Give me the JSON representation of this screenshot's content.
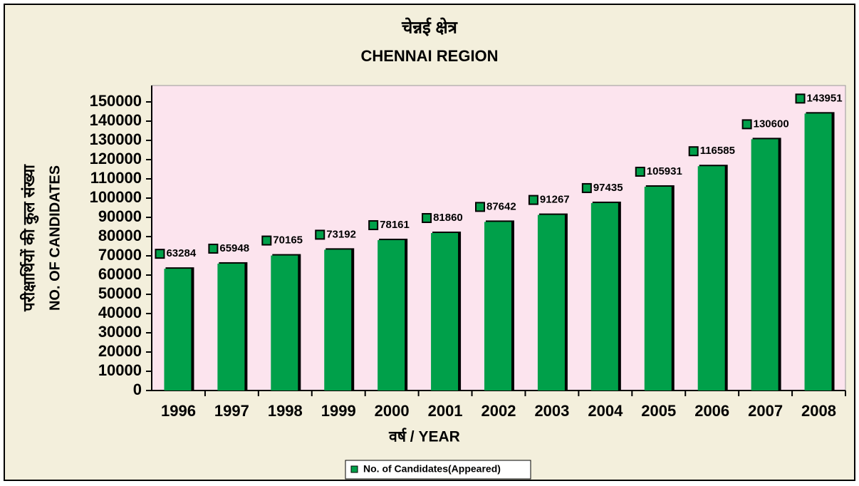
{
  "chart_data": {
    "type": "bar",
    "title": "चेन्नई क्षेत्र",
    "subtitle": "CHENNAI REGION",
    "y_label": "परीक्षार्थियों की कुल संख्या",
    "y_label_2": "NO. OF CANDIDATES",
    "x_label": "वर्ष / YEAR",
    "categories": [
      "1996",
      "1997",
      "1998",
      "1999",
      "2000",
      "2001",
      "2002",
      "2003",
      "2004",
      "2005",
      "2006",
      "2007",
      "2008"
    ],
    "series": [
      {
        "name": "No. of Candidates(Appeared)",
        "color": "#00a04a",
        "values": [
          63284,
          65948,
          70165,
          73192,
          78161,
          81860,
          87642,
          91267,
          97435,
          105931,
          116585,
          130600,
          143951
        ]
      }
    ],
    "ylim": [
      0,
      150000
    ],
    "yticks": [
      0,
      10000,
      20000,
      30000,
      40000,
      50000,
      60000,
      70000,
      80000,
      90000,
      100000,
      110000,
      120000,
      130000,
      140000,
      150000
    ],
    "grid": false,
    "legend": "bottom"
  }
}
